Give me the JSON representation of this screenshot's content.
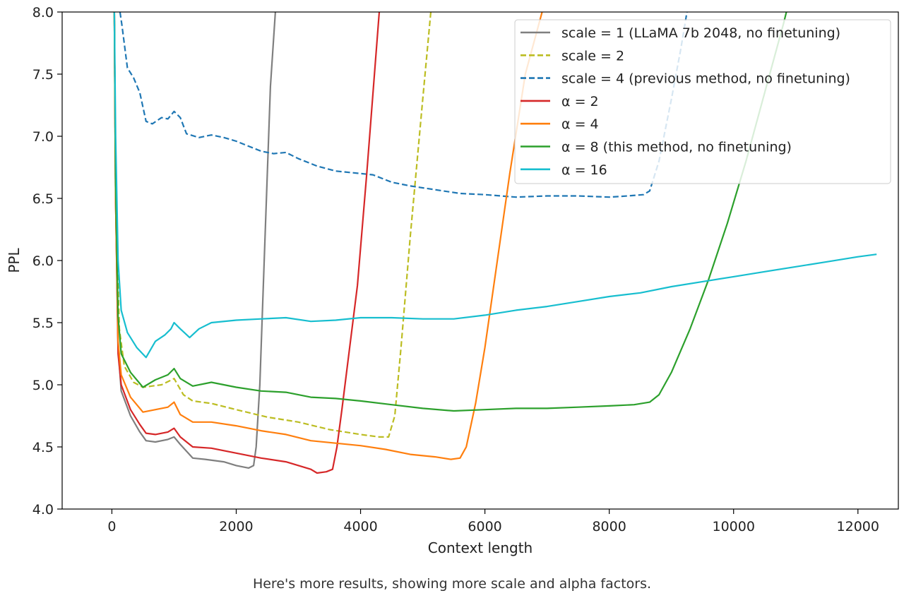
{
  "caption": "Here's more results, showing more scale and alpha factors.",
  "chart_data": {
    "type": "line",
    "title": "",
    "xlabel": "Context length",
    "ylabel": "PPL",
    "xlim": [
      -800,
      12650
    ],
    "ylim": [
      4.0,
      8.0
    ],
    "xticks": [
      0,
      2000,
      4000,
      6000,
      8000,
      10000,
      12000
    ],
    "yticks": [
      4.0,
      4.5,
      5.0,
      5.5,
      6.0,
      6.5,
      7.0,
      7.5,
      8.0
    ],
    "grid": false,
    "legend_position": "top-right",
    "series": [
      {
        "name": "scale = 1 (LLaMA 7b 2048, no finetuning)",
        "color": "#7f7f7f",
        "dash": "solid",
        "points": [
          [
            40,
            8.0
          ],
          [
            60,
            6.5
          ],
          [
            100,
            5.3
          ],
          [
            150,
            4.95
          ],
          [
            300,
            4.75
          ],
          [
            450,
            4.62
          ],
          [
            550,
            4.55
          ],
          [
            700,
            4.54
          ],
          [
            900,
            4.56
          ],
          [
            1000,
            4.58
          ],
          [
            1100,
            4.52
          ],
          [
            1300,
            4.41
          ],
          [
            1500,
            4.4
          ],
          [
            1800,
            4.38
          ],
          [
            2000,
            4.35
          ],
          [
            2200,
            4.33
          ],
          [
            2280,
            4.35
          ],
          [
            2320,
            4.5
          ],
          [
            2380,
            5.0
          ],
          [
            2450,
            6.0
          ],
          [
            2550,
            7.4
          ],
          [
            2630,
            8.0
          ]
        ]
      },
      {
        "name": "scale = 2",
        "color": "#bcbd22",
        "dash": "dashed",
        "points": [
          [
            40,
            8.0
          ],
          [
            60,
            6.5
          ],
          [
            120,
            5.45
          ],
          [
            200,
            5.15
          ],
          [
            350,
            5.02
          ],
          [
            500,
            4.98
          ],
          [
            800,
            5.0
          ],
          [
            1000,
            5.05
          ],
          [
            1150,
            4.92
          ],
          [
            1300,
            4.87
          ],
          [
            1600,
            4.85
          ],
          [
            2000,
            4.8
          ],
          [
            2500,
            4.74
          ],
          [
            3000,
            4.7
          ],
          [
            3500,
            4.64
          ],
          [
            4000,
            4.6
          ],
          [
            4300,
            4.58
          ],
          [
            4450,
            4.58
          ],
          [
            4550,
            4.75
          ],
          [
            4650,
            5.3
          ],
          [
            4800,
            6.2
          ],
          [
            5000,
            7.3
          ],
          [
            5130,
            8.0
          ]
        ]
      },
      {
        "name": "scale = 4 (previous method, no finetuning)",
        "color": "#1f77b4",
        "dash": "dashed",
        "points": [
          [
            130,
            8.0
          ],
          [
            160,
            7.9
          ],
          [
            250,
            7.55
          ],
          [
            350,
            7.47
          ],
          [
            450,
            7.35
          ],
          [
            550,
            7.12
          ],
          [
            650,
            7.1
          ],
          [
            800,
            7.15
          ],
          [
            900,
            7.14
          ],
          [
            1000,
            7.2
          ],
          [
            1100,
            7.15
          ],
          [
            1200,
            7.02
          ],
          [
            1400,
            6.99
          ],
          [
            1600,
            7.01
          ],
          [
            1800,
            6.99
          ],
          [
            2000,
            6.96
          ],
          [
            2200,
            6.92
          ],
          [
            2400,
            6.88
          ],
          [
            2600,
            6.86
          ],
          [
            2800,
            6.87
          ],
          [
            3000,
            6.82
          ],
          [
            3300,
            6.76
          ],
          [
            3600,
            6.72
          ],
          [
            4000,
            6.7
          ],
          [
            4200,
            6.69
          ],
          [
            4500,
            6.63
          ],
          [
            4800,
            6.6
          ],
          [
            5200,
            6.57
          ],
          [
            5600,
            6.54
          ],
          [
            6000,
            6.53
          ],
          [
            6500,
            6.51
          ],
          [
            7000,
            6.52
          ],
          [
            7500,
            6.52
          ],
          [
            8000,
            6.51
          ],
          [
            8300,
            6.52
          ],
          [
            8550,
            6.53
          ],
          [
            8650,
            6.56
          ],
          [
            8800,
            6.8
          ],
          [
            9000,
            7.3
          ],
          [
            9150,
            7.7
          ],
          [
            9250,
            8.0
          ]
        ]
      },
      {
        "name": "α = 2",
        "color": "#d62728",
        "dash": "solid",
        "points": [
          [
            40,
            8.0
          ],
          [
            60,
            6.5
          ],
          [
            100,
            5.25
          ],
          [
            150,
            5.0
          ],
          [
            300,
            4.8
          ],
          [
            450,
            4.68
          ],
          [
            550,
            4.61
          ],
          [
            700,
            4.6
          ],
          [
            900,
            4.62
          ],
          [
            1000,
            4.65
          ],
          [
            1100,
            4.58
          ],
          [
            1300,
            4.5
          ],
          [
            1600,
            4.49
          ],
          [
            2000,
            4.45
          ],
          [
            2400,
            4.41
          ],
          [
            2800,
            4.38
          ],
          [
            3200,
            4.32
          ],
          [
            3300,
            4.29
          ],
          [
            3450,
            4.3
          ],
          [
            3550,
            4.32
          ],
          [
            3620,
            4.5
          ],
          [
            3700,
            4.8
          ],
          [
            3800,
            5.2
          ],
          [
            3950,
            5.8
          ],
          [
            4100,
            6.7
          ],
          [
            4300,
            8.0
          ]
        ]
      },
      {
        "name": "α = 4",
        "color": "#ff7f0e",
        "dash": "solid",
        "points": [
          [
            40,
            8.0
          ],
          [
            60,
            6.5
          ],
          [
            100,
            5.35
          ],
          [
            150,
            5.08
          ],
          [
            300,
            4.9
          ],
          [
            500,
            4.78
          ],
          [
            700,
            4.8
          ],
          [
            900,
            4.82
          ],
          [
            1000,
            4.86
          ],
          [
            1100,
            4.76
          ],
          [
            1300,
            4.7
          ],
          [
            1600,
            4.7
          ],
          [
            2000,
            4.67
          ],
          [
            2400,
            4.63
          ],
          [
            2800,
            4.6
          ],
          [
            3200,
            4.55
          ],
          [
            3600,
            4.53
          ],
          [
            4000,
            4.51
          ],
          [
            4400,
            4.48
          ],
          [
            4800,
            4.44
          ],
          [
            5200,
            4.42
          ],
          [
            5450,
            4.4
          ],
          [
            5600,
            4.41
          ],
          [
            5700,
            4.5
          ],
          [
            5850,
            4.85
          ],
          [
            6000,
            5.3
          ],
          [
            6200,
            6.0
          ],
          [
            6400,
            6.7
          ],
          [
            6650,
            7.5
          ],
          [
            6920,
            8.0
          ]
        ]
      },
      {
        "name": "α = 8 (this method, no finetuning)",
        "color": "#2ca02c",
        "dash": "solid",
        "points": [
          [
            40,
            8.0
          ],
          [
            60,
            6.6
          ],
          [
            100,
            5.55
          ],
          [
            150,
            5.25
          ],
          [
            300,
            5.1
          ],
          [
            500,
            4.98
          ],
          [
            700,
            5.04
          ],
          [
            900,
            5.08
          ],
          [
            1000,
            5.13
          ],
          [
            1100,
            5.05
          ],
          [
            1300,
            4.99
          ],
          [
            1600,
            5.02
          ],
          [
            2000,
            4.98
          ],
          [
            2400,
            4.95
          ],
          [
            2800,
            4.94
          ],
          [
            3200,
            4.9
          ],
          [
            3600,
            4.89
          ],
          [
            4000,
            4.87
          ],
          [
            4500,
            4.84
          ],
          [
            5000,
            4.81
          ],
          [
            5500,
            4.79
          ],
          [
            6000,
            4.8
          ],
          [
            6500,
            4.81
          ],
          [
            7000,
            4.81
          ],
          [
            7500,
            4.82
          ],
          [
            8000,
            4.83
          ],
          [
            8400,
            4.84
          ],
          [
            8650,
            4.86
          ],
          [
            8800,
            4.92
          ],
          [
            9000,
            5.1
          ],
          [
            9300,
            5.45
          ],
          [
            9600,
            5.85
          ],
          [
            9900,
            6.3
          ],
          [
            10200,
            6.8
          ],
          [
            10500,
            7.35
          ],
          [
            10800,
            7.9
          ],
          [
            10850,
            8.0
          ]
        ]
      },
      {
        "name": "α = 16",
        "color": "#17becf",
        "dash": "solid",
        "points": [
          [
            40,
            8.0
          ],
          [
            60,
            7.0
          ],
          [
            100,
            6.0
          ],
          [
            150,
            5.6
          ],
          [
            250,
            5.42
          ],
          [
            400,
            5.3
          ],
          [
            550,
            5.22
          ],
          [
            700,
            5.35
          ],
          [
            850,
            5.4
          ],
          [
            950,
            5.45
          ],
          [
            1000,
            5.5
          ],
          [
            1100,
            5.45
          ],
          [
            1250,
            5.38
          ],
          [
            1400,
            5.45
          ],
          [
            1600,
            5.5
          ],
          [
            2000,
            5.52
          ],
          [
            2400,
            5.53
          ],
          [
            2800,
            5.54
          ],
          [
            3200,
            5.51
          ],
          [
            3600,
            5.52
          ],
          [
            4000,
            5.54
          ],
          [
            4500,
            5.54
          ],
          [
            5000,
            5.53
          ],
          [
            5500,
            5.53
          ],
          [
            6000,
            5.56
          ],
          [
            6500,
            5.6
          ],
          [
            7000,
            5.63
          ],
          [
            7500,
            5.67
          ],
          [
            8000,
            5.71
          ],
          [
            8500,
            5.74
          ],
          [
            9000,
            5.79
          ],
          [
            9500,
            5.83
          ],
          [
            10000,
            5.87
          ],
          [
            10500,
            5.91
          ],
          [
            11000,
            5.95
          ],
          [
            11500,
            5.99
          ],
          [
            12000,
            6.03
          ],
          [
            12300,
            6.05
          ]
        ]
      }
    ]
  }
}
